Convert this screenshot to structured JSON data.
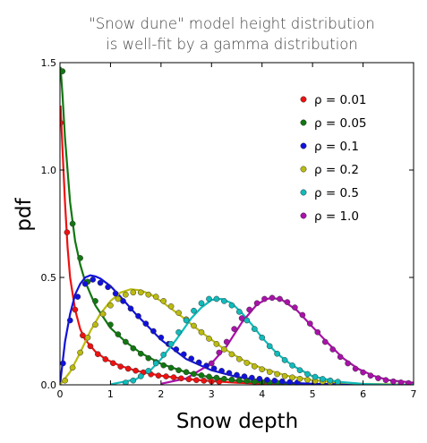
{
  "chart_data": {
    "type": "scatter",
    "title_lines": [
      "\"Snow dune\" model height distribution",
      "is well-fit by a gamma distribution"
    ],
    "xlabel": "Snow depth",
    "ylabel": "pdf",
    "xlim": [
      0,
      7
    ],
    "ylim": [
      0,
      1.5
    ],
    "x_ticks": [
      "0",
      "1",
      "2",
      "3",
      "4",
      "5",
      "6",
      "7"
    ],
    "y_ticks": [
      "0.0",
      "0.5",
      "1.0",
      "1.5"
    ],
    "legend_position": "top-right",
    "grid": false,
    "series": [
      {
        "name": "ρ = 0.01",
        "color": "#ee1111",
        "points": [
          [
            0.01,
            1.22
          ],
          [
            0.14,
            0.71
          ],
          [
            0.3,
            0.35
          ],
          [
            0.45,
            0.23
          ],
          [
            0.6,
            0.18
          ],
          [
            0.75,
            0.143
          ],
          [
            0.9,
            0.119
          ],
          [
            1.05,
            0.101
          ],
          [
            1.2,
            0.085
          ],
          [
            1.35,
            0.075
          ],
          [
            1.5,
            0.066
          ],
          [
            1.65,
            0.058
          ],
          [
            1.8,
            0.049
          ],
          [
            1.95,
            0.043
          ],
          [
            2.1,
            0.039
          ],
          [
            2.25,
            0.035
          ],
          [
            2.4,
            0.03
          ],
          [
            2.55,
            0.026
          ],
          [
            2.7,
            0.022
          ],
          [
            2.85,
            0.019
          ],
          [
            3.0,
            0.016
          ],
          [
            3.15,
            0.014
          ]
        ],
        "curve": [
          [
            0.01,
            1.3
          ],
          [
            0.05,
            1.1
          ],
          [
            0.1,
            0.85
          ],
          [
            0.15,
            0.64
          ],
          [
            0.2,
            0.5
          ],
          [
            0.3,
            0.35
          ],
          [
            0.4,
            0.26
          ],
          [
            0.5,
            0.21
          ],
          [
            0.7,
            0.155
          ],
          [
            0.9,
            0.12
          ],
          [
            1.2,
            0.088
          ],
          [
            1.5,
            0.066
          ],
          [
            2.0,
            0.042
          ],
          [
            2.5,
            0.027
          ],
          [
            3.0,
            0.017
          ],
          [
            3.5,
            0.01
          ],
          [
            4.0,
            0.006
          ],
          [
            5.0,
            0.002
          ],
          [
            6.0,
            0.001
          ],
          [
            7.0,
            0.0
          ]
        ]
      },
      {
        "name": "ρ = 0.05",
        "color": "#117711",
        "points": [
          [
            0.05,
            1.46
          ],
          [
            0.25,
            0.75
          ],
          [
            0.4,
            0.59
          ],
          [
            0.55,
            0.48
          ],
          [
            0.7,
            0.39
          ],
          [
            0.85,
            0.33
          ],
          [
            1.0,
            0.28
          ],
          [
            1.15,
            0.235
          ],
          [
            1.3,
            0.2
          ],
          [
            1.45,
            0.17
          ],
          [
            1.6,
            0.145
          ],
          [
            1.75,
            0.124
          ],
          [
            1.9,
            0.106
          ],
          [
            2.05,
            0.091
          ],
          [
            2.2,
            0.079
          ],
          [
            2.35,
            0.068
          ],
          [
            2.5,
            0.059
          ],
          [
            2.65,
            0.051
          ],
          [
            2.8,
            0.044
          ],
          [
            2.95,
            0.038
          ],
          [
            3.1,
            0.033
          ],
          [
            3.25,
            0.028
          ],
          [
            3.4,
            0.024
          ],
          [
            3.55,
            0.021
          ],
          [
            3.7,
            0.018
          ],
          [
            3.85,
            0.015
          ],
          [
            4.0,
            0.013
          ],
          [
            4.15,
            0.011
          ],
          [
            4.3,
            0.01
          ]
        ],
        "curve": [
          [
            0.01,
            1.48
          ],
          [
            0.05,
            1.35
          ],
          [
            0.1,
            1.15
          ],
          [
            0.2,
            0.85
          ],
          [
            0.3,
            0.67
          ],
          [
            0.4,
            0.56
          ],
          [
            0.5,
            0.48
          ],
          [
            0.7,
            0.37
          ],
          [
            1.0,
            0.265
          ],
          [
            1.3,
            0.2
          ],
          [
            1.6,
            0.148
          ],
          [
            2.0,
            0.098
          ],
          [
            2.5,
            0.058
          ],
          [
            3.0,
            0.034
          ],
          [
            3.5,
            0.019
          ],
          [
            4.0,
            0.011
          ],
          [
            4.5,
            0.006
          ],
          [
            5.0,
            0.003
          ],
          [
            6.0,
            0.001
          ],
          [
            7.0,
            0.0
          ]
        ]
      },
      {
        "name": "ρ = 0.1",
        "color": "#1111dd",
        "points": [
          [
            0.06,
            0.1
          ],
          [
            0.2,
            0.3
          ],
          [
            0.35,
            0.41
          ],
          [
            0.5,
            0.47
          ],
          [
            0.65,
            0.49
          ],
          [
            0.8,
            0.475
          ],
          [
            0.95,
            0.455
          ],
          [
            1.1,
            0.425
          ],
          [
            1.25,
            0.39
          ],
          [
            1.4,
            0.355
          ],
          [
            1.55,
            0.32
          ],
          [
            1.7,
            0.285
          ],
          [
            1.85,
            0.25
          ],
          [
            2.0,
            0.22
          ],
          [
            2.15,
            0.19
          ],
          [
            2.3,
            0.165
          ],
          [
            2.45,
            0.142
          ],
          [
            2.6,
            0.122
          ],
          [
            2.75,
            0.104
          ],
          [
            2.9,
            0.089
          ],
          [
            3.05,
            0.076
          ],
          [
            3.2,
            0.065
          ],
          [
            3.35,
            0.055
          ],
          [
            3.5,
            0.046
          ],
          [
            3.65,
            0.039
          ],
          [
            3.8,
            0.033
          ],
          [
            3.95,
            0.028
          ],
          [
            4.1,
            0.023
          ],
          [
            4.25,
            0.019
          ],
          [
            4.4,
            0.016
          ],
          [
            4.55,
            0.013
          ],
          [
            4.7,
            0.011
          ]
        ],
        "curve": [
          [
            0.0,
            0.0
          ],
          [
            0.1,
            0.2
          ],
          [
            0.2,
            0.33
          ],
          [
            0.3,
            0.42
          ],
          [
            0.4,
            0.47
          ],
          [
            0.5,
            0.5
          ],
          [
            0.6,
            0.51
          ],
          [
            0.7,
            0.505
          ],
          [
            0.8,
            0.495
          ],
          [
            1.0,
            0.46
          ],
          [
            1.2,
            0.41
          ],
          [
            1.5,
            0.33
          ],
          [
            2.0,
            0.21
          ],
          [
            2.5,
            0.12
          ],
          [
            3.0,
            0.068
          ],
          [
            3.5,
            0.037
          ],
          [
            4.0,
            0.02
          ],
          [
            4.5,
            0.01
          ],
          [
            5.0,
            0.005
          ],
          [
            6.0,
            0.001
          ],
          [
            7.0,
            0.0
          ]
        ]
      },
      {
        "name": "ρ = 0.2",
        "color": "#bbbb11",
        "points": [
          [
            0.1,
            0.02
          ],
          [
            0.25,
            0.08
          ],
          [
            0.4,
            0.15
          ],
          [
            0.55,
            0.22
          ],
          [
            0.7,
            0.28
          ],
          [
            0.85,
            0.33
          ],
          [
            1.0,
            0.37
          ],
          [
            1.15,
            0.4
          ],
          [
            1.3,
            0.42
          ],
          [
            1.45,
            0.43
          ],
          [
            1.6,
            0.43
          ],
          [
            1.75,
            0.42
          ],
          [
            1.9,
            0.41
          ],
          [
            2.05,
            0.39
          ],
          [
            2.2,
            0.365
          ],
          [
            2.35,
            0.335
          ],
          [
            2.5,
            0.305
          ],
          [
            2.65,
            0.275
          ],
          [
            2.8,
            0.245
          ],
          [
            2.95,
            0.215
          ],
          [
            3.1,
            0.19
          ],
          [
            3.25,
            0.165
          ],
          [
            3.4,
            0.142
          ],
          [
            3.55,
            0.12
          ],
          [
            3.7,
            0.102
          ],
          [
            3.85,
            0.086
          ],
          [
            4.0,
            0.072
          ],
          [
            4.15,
            0.06
          ],
          [
            4.3,
            0.05
          ],
          [
            4.45,
            0.041
          ],
          [
            4.6,
            0.034
          ],
          [
            4.75,
            0.028
          ],
          [
            4.9,
            0.023
          ],
          [
            5.05,
            0.018
          ],
          [
            5.2,
            0.015
          ],
          [
            5.35,
            0.012
          ],
          [
            5.5,
            0.01
          ]
        ],
        "curve": [
          [
            0.0,
            0.0
          ],
          [
            0.2,
            0.06
          ],
          [
            0.4,
            0.15
          ],
          [
            0.6,
            0.25
          ],
          [
            0.8,
            0.33
          ],
          [
            1.0,
            0.39
          ],
          [
            1.2,
            0.43
          ],
          [
            1.4,
            0.445
          ],
          [
            1.6,
            0.44
          ],
          [
            1.8,
            0.42
          ],
          [
            2.0,
            0.39
          ],
          [
            2.4,
            0.32
          ],
          [
            2.8,
            0.245
          ],
          [
            3.2,
            0.175
          ],
          [
            3.6,
            0.118
          ],
          [
            4.0,
            0.077
          ],
          [
            4.5,
            0.042
          ],
          [
            5.0,
            0.022
          ],
          [
            5.5,
            0.011
          ],
          [
            6.0,
            0.005
          ],
          [
            7.0,
            0.001
          ]
        ]
      },
      {
        "name": "ρ = 0.5",
        "color": "#11bbbb",
        "points": [
          [
            1.3,
            0.01
          ],
          [
            1.45,
            0.02
          ],
          [
            1.6,
            0.04
          ],
          [
            1.75,
            0.065
          ],
          [
            1.9,
            0.1
          ],
          [
            2.05,
            0.14
          ],
          [
            2.2,
            0.19
          ],
          [
            2.35,
            0.245
          ],
          [
            2.5,
            0.3
          ],
          [
            2.65,
            0.345
          ],
          [
            2.8,
            0.38
          ],
          [
            2.95,
            0.4
          ],
          [
            3.1,
            0.4
          ],
          [
            3.25,
            0.39
          ],
          [
            3.4,
            0.37
          ],
          [
            3.55,
            0.34
          ],
          [
            3.7,
            0.3
          ],
          [
            3.85,
            0.26
          ],
          [
            4.0,
            0.22
          ],
          [
            4.15,
            0.18
          ],
          [
            4.3,
            0.145
          ],
          [
            4.45,
            0.115
          ],
          [
            4.6,
            0.09
          ],
          [
            4.75,
            0.068
          ],
          [
            4.9,
            0.05
          ],
          [
            5.05,
            0.037
          ],
          [
            5.2,
            0.027
          ],
          [
            5.35,
            0.02
          ],
          [
            5.5,
            0.014
          ]
        ],
        "curve": [
          [
            1.0,
            0.002
          ],
          [
            1.5,
            0.025
          ],
          [
            1.8,
            0.07
          ],
          [
            2.0,
            0.12
          ],
          [
            2.3,
            0.21
          ],
          [
            2.6,
            0.31
          ],
          [
            2.8,
            0.36
          ],
          [
            3.0,
            0.395
          ],
          [
            3.2,
            0.4
          ],
          [
            3.4,
            0.38
          ],
          [
            3.6,
            0.335
          ],
          [
            3.8,
            0.28
          ],
          [
            4.0,
            0.22
          ],
          [
            4.3,
            0.145
          ],
          [
            4.6,
            0.09
          ],
          [
            5.0,
            0.04
          ],
          [
            5.5,
            0.014
          ],
          [
            6.0,
            0.004
          ],
          [
            6.5,
            0.001
          ],
          [
            7.0,
            0.0
          ]
        ]
      },
      {
        "name": "ρ = 1.0",
        "color": "#aa11aa",
        "points": [
          [
            3.0,
            0.1
          ],
          [
            3.15,
            0.15
          ],
          [
            3.3,
            0.2
          ],
          [
            3.45,
            0.26
          ],
          [
            3.6,
            0.31
          ],
          [
            3.75,
            0.35
          ],
          [
            3.9,
            0.38
          ],
          [
            4.05,
            0.4
          ],
          [
            4.2,
            0.405
          ],
          [
            4.35,
            0.4
          ],
          [
            4.5,
            0.385
          ],
          [
            4.65,
            0.36
          ],
          [
            4.8,
            0.325
          ],
          [
            4.95,
            0.285
          ],
          [
            5.1,
            0.245
          ],
          [
            5.25,
            0.2
          ],
          [
            5.4,
            0.165
          ],
          [
            5.55,
            0.13
          ],
          [
            5.7,
            0.1
          ],
          [
            5.85,
            0.075
          ],
          [
            6.0,
            0.058
          ],
          [
            6.15,
            0.043
          ],
          [
            6.3,
            0.031
          ],
          [
            6.45,
            0.022
          ],
          [
            6.6,
            0.016
          ],
          [
            6.75,
            0.011
          ],
          [
            6.9,
            0.008
          ]
        ],
        "curve": [
          [
            2.0,
            0.005
          ],
          [
            2.5,
            0.03
          ],
          [
            3.0,
            0.1
          ],
          [
            3.3,
            0.18
          ],
          [
            3.6,
            0.29
          ],
          [
            3.9,
            0.375
          ],
          [
            4.1,
            0.4
          ],
          [
            4.2,
            0.405
          ],
          [
            4.4,
            0.395
          ],
          [
            4.7,
            0.345
          ],
          [
            5.0,
            0.27
          ],
          [
            5.3,
            0.195
          ],
          [
            5.6,
            0.125
          ],
          [
            5.9,
            0.075
          ],
          [
            6.2,
            0.042
          ],
          [
            6.5,
            0.022
          ],
          [
            7.0,
            0.01
          ]
        ]
      }
    ]
  }
}
